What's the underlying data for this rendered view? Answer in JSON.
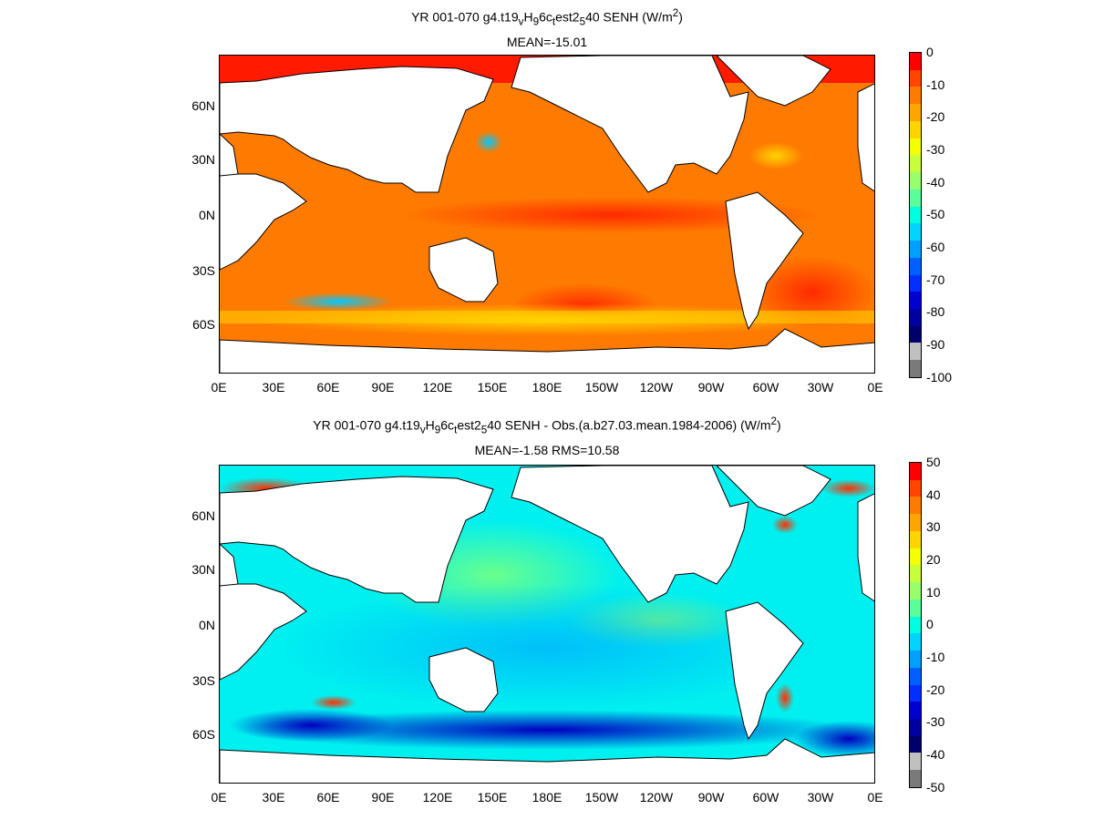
{
  "panels": [
    {
      "title_prefix": "YR 001-070 g4.t19",
      "title_parts": [
        "v",
        "H",
        "9",
        "6c",
        "t",
        "est2",
        "5",
        "40  SENH (W/m",
        "2",
        ")"
      ],
      "subtitle": "MEAN=-15.01",
      "lat_labels": [
        "60N",
        "30N",
        "0N",
        "30S",
        "60S"
      ],
      "lon_labels": [
        "0E",
        "30E",
        "60E",
        "90E",
        "120E",
        "150E",
        "180E",
        "150W",
        "120W",
        "90W",
        "60W",
        "30W",
        "0E"
      ],
      "colorbar_labels": [
        "0",
        "-10",
        "-20",
        "-30",
        "-40",
        "-50",
        "-60",
        "-70",
        "-80",
        "-90",
        "-100"
      ],
      "colorbar_colors": [
        "#ff0000",
        "#ff4500",
        "#ff7a00",
        "#ffa500",
        "#ffd400",
        "#f6ff00",
        "#c8ff3c",
        "#96ff6e",
        "#5aff9a",
        "#00ffe0",
        "#00d4ff",
        "#00a0ff",
        "#0060ff",
        "#0030ff",
        "#0000d0",
        "#0000a0",
        "#00006a",
        "#c0c0c0",
        "#7a7a7a"
      ],
      "field_base_color": "#ff7a00"
    },
    {
      "title_prefix": "YR 001-070 g4.t19",
      "title_parts": [
        "v",
        "H",
        "9",
        "6c",
        "t",
        "est2",
        "5",
        "40 SENH - Obs.(a.b27.03.mean.1984-2006) (W/m",
        "2",
        ")"
      ],
      "subtitle": "MEAN=-1.58 RMS=10.58",
      "lat_labels": [
        "60N",
        "30N",
        "0N",
        "30S",
        "60S"
      ],
      "lon_labels": [
        "0E",
        "30E",
        "60E",
        "90E",
        "120E",
        "150E",
        "180E",
        "150W",
        "120W",
        "90W",
        "60W",
        "30W",
        "0E"
      ],
      "colorbar_labels": [
        "50",
        "40",
        "30",
        "20",
        "10",
        "0",
        "-10",
        "-20",
        "-30",
        "-40",
        "-50"
      ],
      "colorbar_colors": [
        "#ff0000",
        "#ff4500",
        "#ff7a00",
        "#ffa500",
        "#ffd400",
        "#f6ff00",
        "#c8ff3c",
        "#96ff6e",
        "#5aff9a",
        "#00ffe0",
        "#00d4ff",
        "#00a0ff",
        "#0060ff",
        "#0030ff",
        "#0000d0",
        "#0000a0",
        "#00006a",
        "#c0c0c0",
        "#7a7a7a"
      ],
      "field_base_color": "#00f0f0"
    }
  ]
}
